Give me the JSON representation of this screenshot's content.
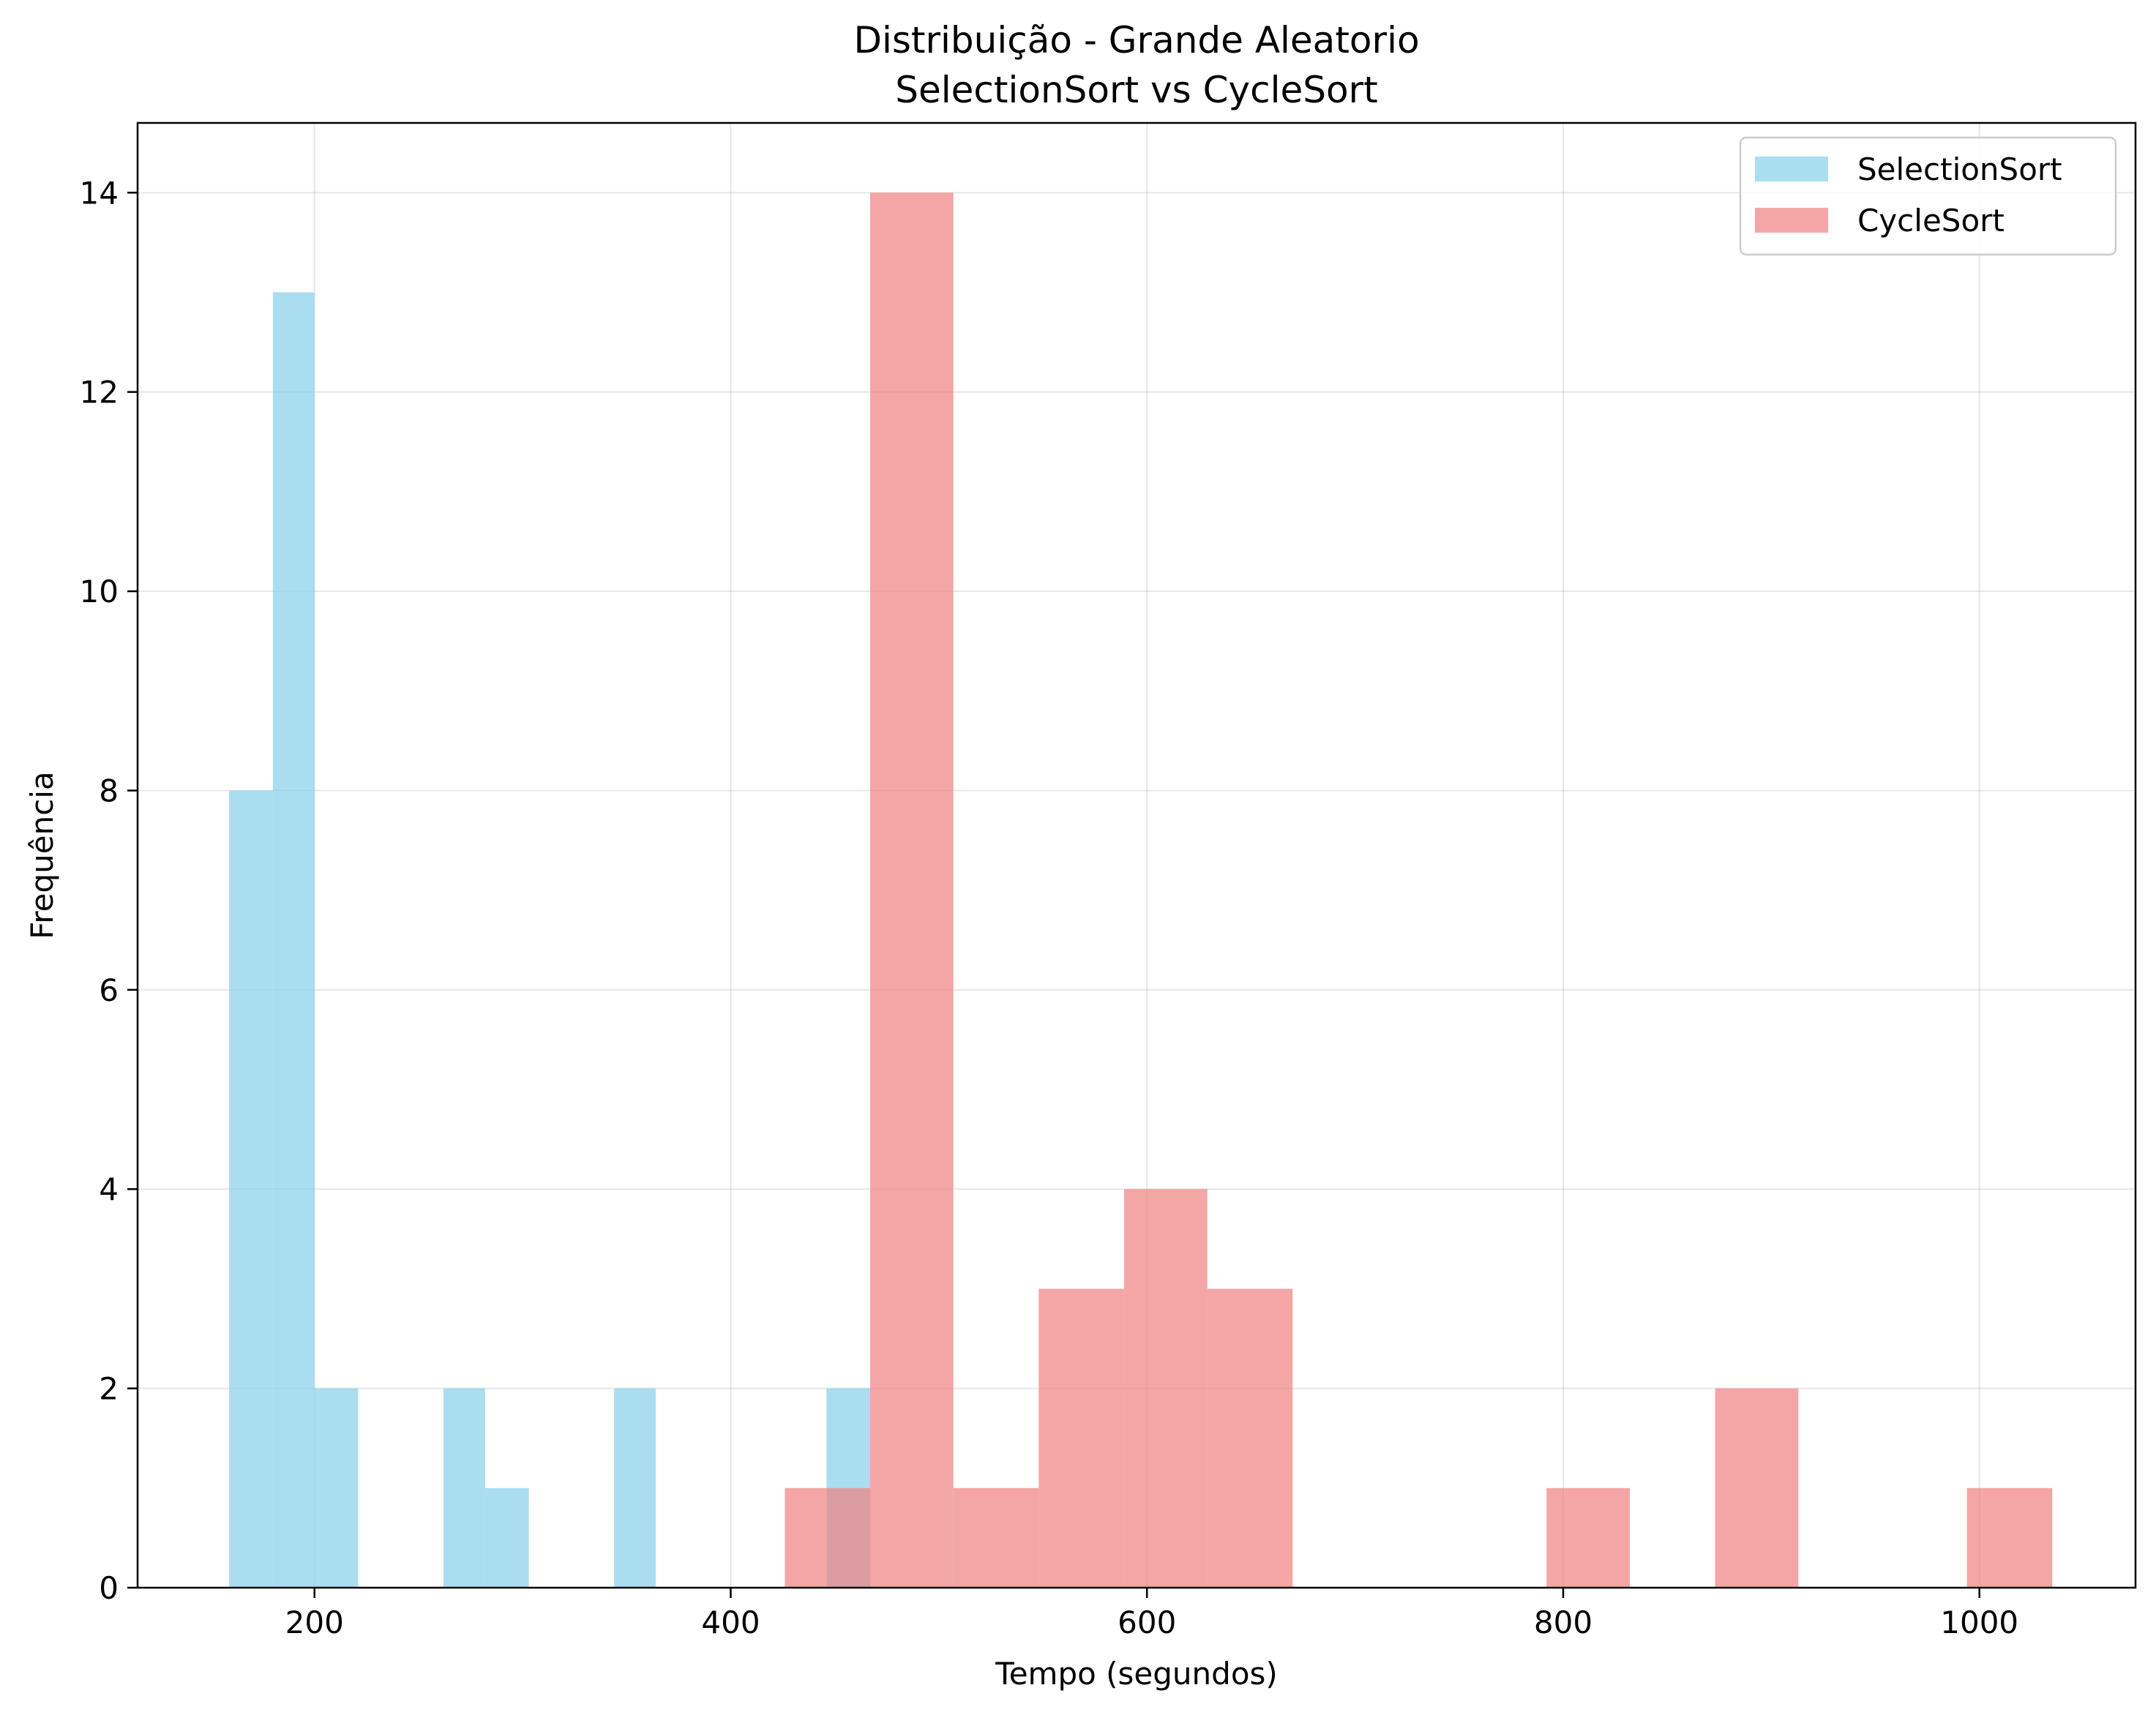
{
  "chart_data": {
    "type": "bar",
    "subtype": "histogram",
    "title": "Distribuição - Grande Aleatorio",
    "subtitle": "SelectionSort vs CycleSort",
    "xlabel": "Tempo (segundos)",
    "ylabel": "Frequência",
    "xlim": [
      115,
      1075
    ],
    "ylim": [
      0,
      14.7
    ],
    "xticks": [
      200,
      400,
      600,
      800,
      1000
    ],
    "yticks": [
      0,
      2,
      4,
      6,
      8,
      10,
      12,
      14
    ],
    "grid": true,
    "legend_position": "top-right",
    "series": [
      {
        "name": "SelectionSort",
        "color": "#87CEEB",
        "bins": [
          {
            "x0": 159,
            "x1": 180,
            "count": 8
          },
          {
            "x0": 180,
            "x1": 200,
            "count": 13
          },
          {
            "x0": 200,
            "x1": 221,
            "count": 2
          },
          {
            "x0": 221,
            "x1": 241,
            "count": 0
          },
          {
            "x0": 241,
            "x1": 262,
            "count": 0
          },
          {
            "x0": 262,
            "x1": 282,
            "count": 2
          },
          {
            "x0": 282,
            "x1": 303,
            "count": 1
          },
          {
            "x0": 303,
            "x1": 323,
            "count": 0
          },
          {
            "x0": 323,
            "x1": 344,
            "count": 0
          },
          {
            "x0": 344,
            "x1": 364,
            "count": 2
          },
          {
            "x0": 364,
            "x1": 385,
            "count": 0
          },
          {
            "x0": 385,
            "x1": 405,
            "count": 0
          },
          {
            "x0": 405,
            "x1": 426,
            "count": 0
          },
          {
            "x0": 426,
            "x1": 446,
            "count": 0
          },
          {
            "x0": 446,
            "x1": 467,
            "count": 2
          }
        ]
      },
      {
        "name": "CycleSort",
        "color": "#F08080",
        "bins": [
          {
            "x0": 426,
            "x1": 467,
            "count": 1
          },
          {
            "x0": 467,
            "x1": 507,
            "count": 14
          },
          {
            "x0": 507,
            "x1": 548,
            "count": 1
          },
          {
            "x0": 548,
            "x1": 589,
            "count": 3
          },
          {
            "x0": 589,
            "x1": 629,
            "count": 4
          },
          {
            "x0": 629,
            "x1": 670,
            "count": 3
          },
          {
            "x0": 670,
            "x1": 710,
            "count": 0
          },
          {
            "x0": 710,
            "x1": 751,
            "count": 0
          },
          {
            "x0": 751,
            "x1": 792,
            "count": 0
          },
          {
            "x0": 792,
            "x1": 832,
            "count": 1
          },
          {
            "x0": 832,
            "x1": 873,
            "count": 0
          },
          {
            "x0": 873,
            "x1": 913,
            "count": 2
          },
          {
            "x0": 913,
            "x1": 954,
            "count": 0
          },
          {
            "x0": 954,
            "x1": 994,
            "count": 0
          },
          {
            "x0": 994,
            "x1": 1035,
            "count": 1
          }
        ]
      }
    ]
  }
}
